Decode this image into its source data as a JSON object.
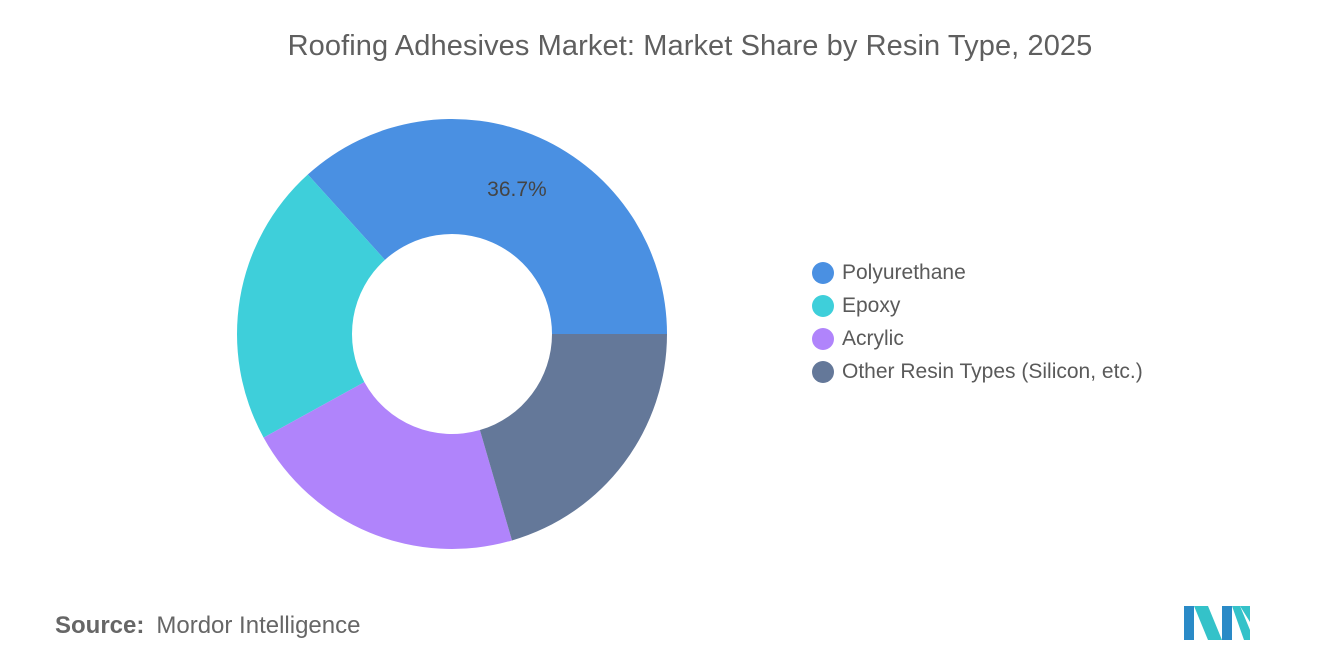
{
  "title": "Roofing Adhesives Market: Market Share by Resin Type, 2025",
  "source": {
    "label": "Source:",
    "text": "Mordor Intelligence"
  },
  "chart_data": {
    "type": "pie",
    "style": "donut",
    "title": "Roofing Adhesives Market: Market Share by Resin Type, 2025",
    "categories": [
      "Polyurethane",
      "Epoxy",
      "Acrylic",
      "Other Resin Types (Silicon, etc.)"
    ],
    "values": [
      36.7,
      21.3,
      21.5,
      20.5
    ],
    "colors": [
      "#4a90e2",
      "#3ecfda",
      "#b084fb",
      "#647899"
    ],
    "data_labels": [
      "36.7%",
      "",
      "",
      ""
    ],
    "legend_position": "right"
  },
  "legend": [
    {
      "label": "Polyurethane",
      "color": "#4a90e2"
    },
    {
      "label": "Epoxy",
      "color": "#3ecfda"
    },
    {
      "label": "Acrylic",
      "color": "#b084fb"
    },
    {
      "label": "Other Resin Types (Silicon, etc.)",
      "color": "#647899"
    }
  ],
  "logo": {
    "name": "mordor-intelligence-logo",
    "colors": [
      "#2a8ac7",
      "#34c2c9"
    ]
  }
}
